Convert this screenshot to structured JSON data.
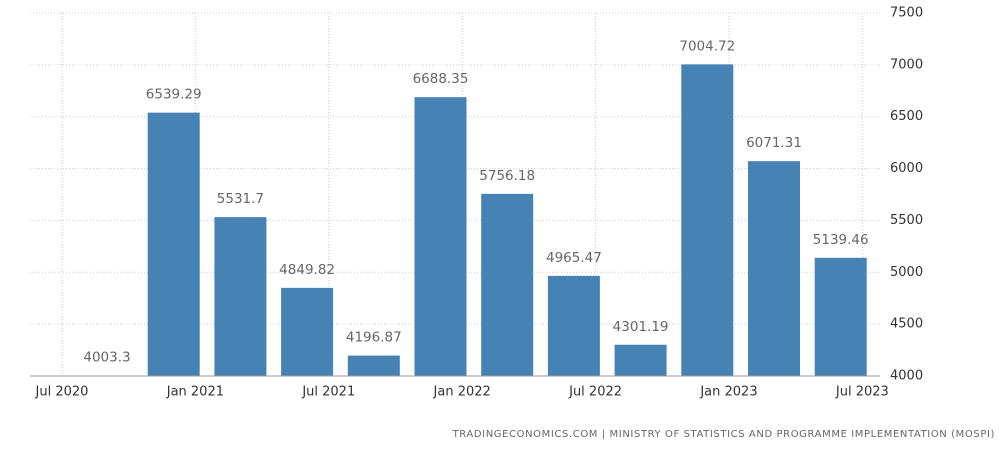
{
  "chart_data": {
    "type": "bar",
    "values": [
      4003.3,
      6539.29,
      5531.7,
      4849.82,
      4196.87,
      6688.35,
      5756.18,
      4965.47,
      4301.19,
      7004.72,
      6071.31,
      5139.46
    ],
    "color": "#4682b4",
    "ylim": [
      4000,
      7500
    ],
    "yticks": [
      4000,
      4500,
      5000,
      5500,
      6000,
      6500,
      7000,
      7500
    ],
    "xticks": [
      "Jul 2020",
      "Jan 2021",
      "Jul 2021",
      "Jan 2022",
      "Jul 2022",
      "Jan 2023",
      "Jul 2023"
    ],
    "grid": true,
    "source": "TRADINGECONOMICS.COM | MINISTRY OF STATISTICS AND PROGRAMME IMPLEMENTATION (MOSPI)"
  }
}
